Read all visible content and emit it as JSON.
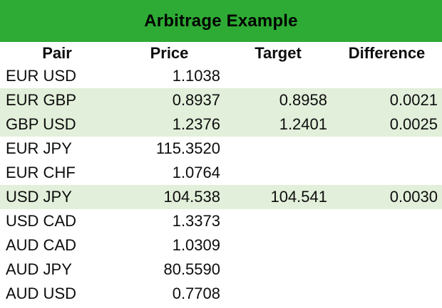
{
  "title": "Arbitrage Example",
  "colors": {
    "header_green": "#2eab34",
    "highlight_green": "#e2efda",
    "text": "#0d0d0d"
  },
  "table": {
    "columns": [
      "Pair",
      "Price",
      "Target",
      "Difference"
    ],
    "rows": [
      {
        "pair": "EUR USD",
        "price": "1.1038",
        "target": "",
        "difference": "",
        "highlighted": false
      },
      {
        "pair": "EUR GBP",
        "price": "0.8937",
        "target": "0.8958",
        "difference": "0.0021",
        "highlighted": true
      },
      {
        "pair": "GBP USD",
        "price": "1.2376",
        "target": "1.2401",
        "difference": "0.0025",
        "highlighted": true
      },
      {
        "pair": "EUR JPY",
        "price": "115.3520",
        "target": "",
        "difference": "",
        "highlighted": false
      },
      {
        "pair": "EUR CHF",
        "price": "1.0764",
        "target": "",
        "difference": "",
        "highlighted": false
      },
      {
        "pair": "USD JPY",
        "price": "104.538",
        "target": "104.541",
        "difference": "0.0030",
        "highlighted": true
      },
      {
        "pair": "USD CAD",
        "price": "1.3373",
        "target": "",
        "difference": "",
        "highlighted": false
      },
      {
        "pair": "AUD CAD",
        "price": "1.0309",
        "target": "",
        "difference": "",
        "highlighted": false
      },
      {
        "pair": "AUD JPY",
        "price": "80.5590",
        "target": "",
        "difference": "",
        "highlighted": false
      },
      {
        "pair": "AUD USD",
        "price": "0.7708",
        "target": "",
        "difference": "",
        "highlighted": false
      }
    ]
  },
  "chart_data": {
    "type": "table",
    "title": "Arbitrage Example",
    "columns": [
      "Pair",
      "Price",
      "Target",
      "Difference"
    ],
    "rows": [
      [
        "EUR USD",
        1.1038,
        null,
        null
      ],
      [
        "EUR GBP",
        0.8937,
        0.8958,
        0.0021
      ],
      [
        "GBP USD",
        1.2376,
        1.2401,
        0.0025
      ],
      [
        "EUR JPY",
        115.352,
        null,
        null
      ],
      [
        "EUR CHF",
        1.0764,
        null,
        null
      ],
      [
        "USD JPY",
        104.538,
        104.541,
        0.003
      ],
      [
        "USD CAD",
        1.3373,
        null,
        null
      ],
      [
        "AUD CAD",
        1.0309,
        null,
        null
      ],
      [
        "AUD JPY",
        80.559,
        null,
        null
      ],
      [
        "AUD USD",
        0.7708,
        null,
        null
      ]
    ],
    "highlighted_rows": [
      "EUR GBP",
      "GBP USD",
      "USD JPY"
    ],
    "highlight_color": "#e2efda",
    "title_bar_color": "#2eab34"
  }
}
